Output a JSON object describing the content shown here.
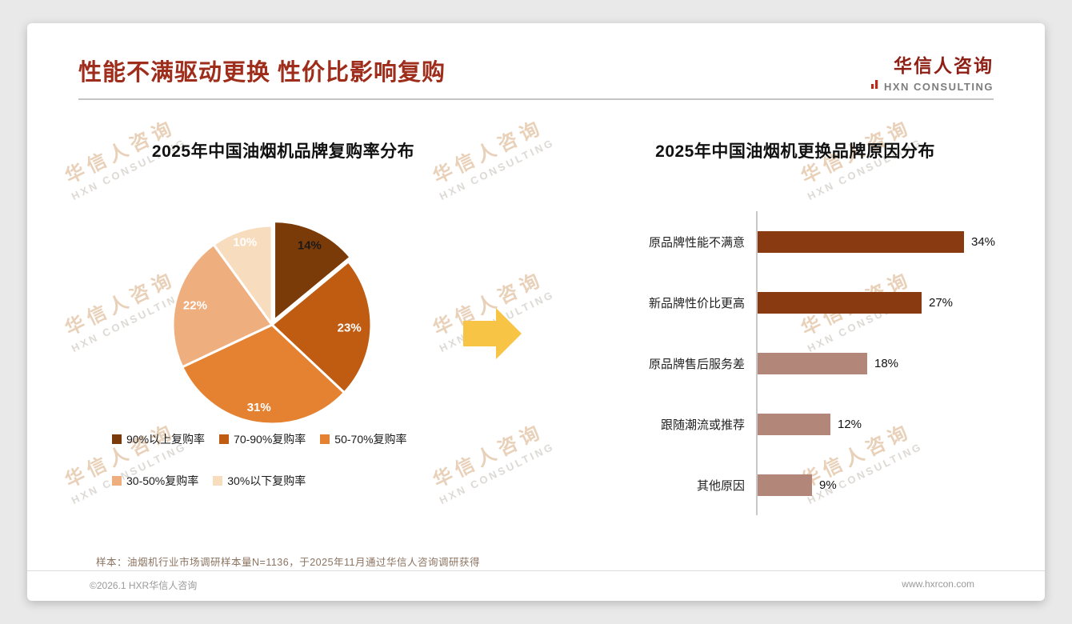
{
  "page": {
    "title": "性能不满驱动更换 性价比影响复购",
    "logo": {
      "cn": "华信人咨询",
      "en": "HXN CONSULTING"
    },
    "watermark": {
      "line1": "华信人咨询",
      "line2": "HXN CONSULTING"
    },
    "footnote": "样本：油烟机行业市场调研样本量N=1136，于2025年11月通过华信人咨询调研获得",
    "footer": {
      "copyright": "©2026.1 HXR华信人咨询",
      "website": "www.hxrcon.com"
    }
  },
  "chart_data": [
    {
      "type": "pie",
      "title": "2025年中国油烟机品牌复购率分布",
      "labels": [
        "90%以上复购率",
        "70-90%复购率",
        "50-70%复购率",
        "30-50%复购率",
        "30%以下复购率"
      ],
      "values": [
        14,
        23,
        31,
        22,
        10
      ],
      "data_labels": [
        "14%",
        "23%",
        "31%",
        "22%",
        "10%"
      ],
      "data_label_colors": [
        "#1a1a1a",
        "#ffffff",
        "#ffffff",
        "#ffffff",
        "#ffffff"
      ],
      "colors": [
        "#7b3b09",
        "#c05c12",
        "#e58231",
        "#efae7d",
        "#f8dcbe"
      ],
      "explode": [
        6,
        0,
        0,
        0,
        0
      ],
      "label_radius": [
        0.84,
        0.78,
        0.84,
        0.8,
        0.88
      ],
      "legend_position": "bottom",
      "start_angle_deg": 0,
      "direction": "clockwise"
    },
    {
      "type": "bar",
      "orientation": "horizontal",
      "title": "2025年中国油烟机更换品牌原因分布",
      "categories": [
        "原品牌性能不满意",
        "新品牌性价比更高",
        "原品牌售后服务差",
        "跟随潮流或推荐",
        "其他原因"
      ],
      "values": [
        34,
        27,
        18,
        12,
        9
      ],
      "value_labels": [
        "34%",
        "27%",
        "18%",
        "12%",
        "9%"
      ],
      "colors": [
        "#8a3a10",
        "#8a3a10",
        "#b28679",
        "#b28679",
        "#b28679"
      ],
      "xlim": [
        0,
        38
      ],
      "grid": false
    }
  ],
  "decor": {
    "arrow_color": "#f8c445",
    "title_color": "#9e2d1b",
    "axis_color": "#c8c8c8"
  }
}
